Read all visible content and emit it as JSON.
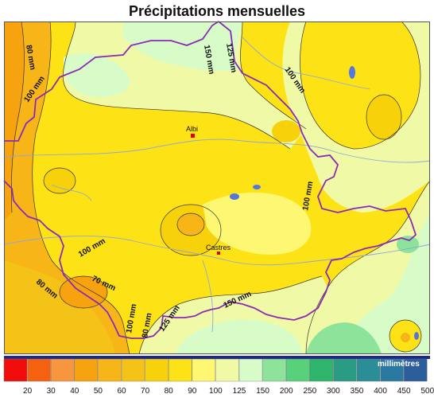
{
  "map": {
    "title": "Précipitations mensuelles",
    "towns": [
      {
        "name": "Albi",
        "id": "albi"
      },
      {
        "name": "Castres",
        "id": "castres"
      }
    ],
    "isolines": [
      {
        "text": "80 mm",
        "id": "l80a"
      },
      {
        "text": "100 mm",
        "id": "l100a"
      },
      {
        "text": "150 mm",
        "id": "l150a"
      },
      {
        "text": "125 mm",
        "id": "l125a"
      },
      {
        "text": "100 mm",
        "id": "l100b"
      },
      {
        "text": "100 mm",
        "id": "l100c"
      },
      {
        "text": "100 mm",
        "id": "l100d"
      },
      {
        "text": "80 mm",
        "id": "l80b"
      },
      {
        "text": "70 mm",
        "id": "l70a"
      },
      {
        "text": "150 mm",
        "id": "l150b"
      },
      {
        "text": "100 mm",
        "id": "l100e"
      },
      {
        "text": "80 mm",
        "id": "l80c"
      },
      {
        "text": "125 mm",
        "id": "l125b"
      }
    ]
  },
  "legend": {
    "unit": "millimètres",
    "classes": [
      {
        "label": "20",
        "color": "#f20c0c"
      },
      {
        "label": "30",
        "color": "#f5620f"
      },
      {
        "label": "40",
        "color": "#f7963c"
      },
      {
        "label": "50",
        "color": "#f7a20f"
      },
      {
        "label": "60",
        "color": "#f7b518"
      },
      {
        "label": "70",
        "color": "#f5c318"
      },
      {
        "label": "80",
        "color": "#f7d20a"
      },
      {
        "label": "90",
        "color": "#fde315"
      },
      {
        "label": "100",
        "color": "#fdf772"
      },
      {
        "label": "125",
        "color": "#f0faa6"
      },
      {
        "label": "150",
        "color": "#d8fcc8"
      },
      {
        "label": "200",
        "color": "#8ee39a"
      },
      {
        "label": "250",
        "color": "#57d27a"
      },
      {
        "label": "300",
        "color": "#2fb46c"
      },
      {
        "label": "350",
        "color": "#2a9c83"
      },
      {
        "label": "400",
        "color": "#2b8e96"
      },
      {
        "label": "450",
        "color": "#2b78a0"
      },
      {
        "label": "500",
        "color": "#2d5e9c"
      }
    ]
  }
}
